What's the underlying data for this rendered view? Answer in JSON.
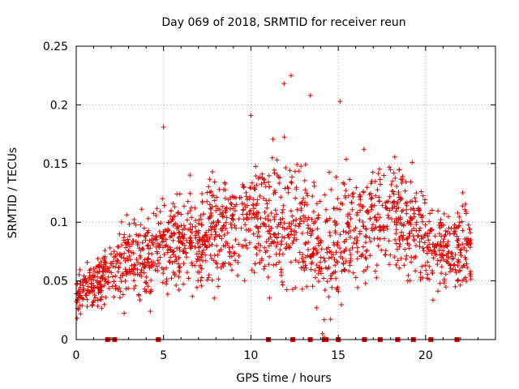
{
  "chart_data": {
    "type": "scatter",
    "title": "Day 069 of 2018, SRMTID for receiver reun",
    "xlabel": "GPS time / hours",
    "ylabel": "SRMTID / TECUs",
    "xlim": [
      0,
      24
    ],
    "ylim": [
      0,
      0.25
    ],
    "xticks": [
      0,
      5,
      10,
      15,
      20
    ],
    "xtick_labels": [
      "0",
      "5",
      "10",
      "15",
      "20"
    ],
    "yticks": [
      0,
      0.05,
      0.1,
      0.15,
      0.2,
      0.25
    ],
    "ytick_labels": [
      "0",
      "0.05",
      "0.1",
      "0.15",
      "0.2",
      "0.25"
    ],
    "grid": true,
    "marker": "plus",
    "color": "#dd0000",
    "envelope": {
      "hours": [
        0,
        1,
        2,
        3,
        4,
        5,
        6,
        7,
        8,
        9,
        10,
        11,
        12,
        13,
        14,
        15,
        16,
        17,
        18,
        19,
        20,
        21,
        22,
        22.6
      ],
      "mean": [
        0.04,
        0.045,
        0.06,
        0.07,
        0.065,
        0.085,
        0.085,
        0.085,
        0.095,
        0.1,
        0.1,
        0.095,
        0.1,
        0.1,
        0.07,
        0.085,
        0.095,
        0.105,
        0.11,
        0.1,
        0.085,
        0.075,
        0.08,
        0.075
      ],
      "spread": [
        0.015,
        0.02,
        0.025,
        0.035,
        0.035,
        0.035,
        0.035,
        0.04,
        0.045,
        0.045,
        0.045,
        0.05,
        0.06,
        0.05,
        0.05,
        0.045,
        0.045,
        0.045,
        0.045,
        0.045,
        0.04,
        0.035,
        0.04,
        0.04
      ]
    },
    "notable_points": [
      {
        "x": 12.3,
        "y": 0.225
      },
      {
        "x": 11.9,
        "y": 0.218
      },
      {
        "x": 13.4,
        "y": 0.208
      },
      {
        "x": 15.1,
        "y": 0.203
      },
      {
        "x": 10.0,
        "y": 0.191
      },
      {
        "x": 5.0,
        "y": 0.181
      },
      {
        "x": 14.2,
        "y": 0.002
      },
      {
        "x": 14.1,
        "y": 0.005
      },
      {
        "x": 0.05,
        "y": 0.018
      }
    ],
    "zero_markers_x": [
      1.8,
      2.2,
      4.7,
      11.0,
      12.4,
      13.4,
      14.2,
      14.3,
      15.0,
      16.5,
      17.4,
      18.4,
      19.3,
      20.3,
      21.8
    ]
  }
}
